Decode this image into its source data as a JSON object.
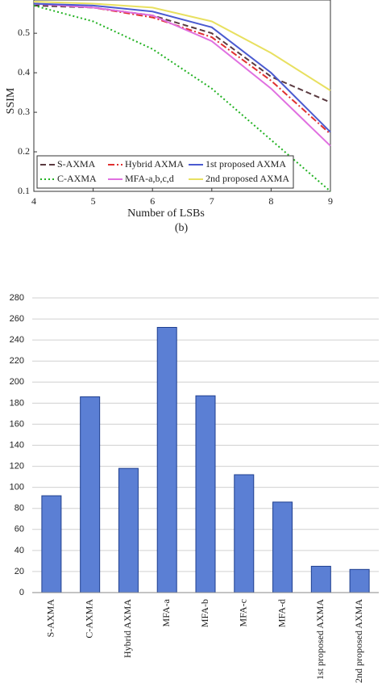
{
  "chart_data": [
    {
      "type": "line",
      "x_label": "Number of LSBs",
      "y_label": "SSIM",
      "caption": "(b)",
      "x": [
        4,
        5,
        6,
        7,
        8,
        9
      ],
      "xlim": [
        4,
        9
      ],
      "xticks": [
        4,
        5,
        6,
        7,
        8,
        9
      ],
      "ylim": [
        0.1,
        0.58
      ],
      "yticks": [
        0.1,
        0.2,
        0.3,
        0.4,
        0.5
      ],
      "legend": "lower left",
      "series": [
        {
          "name": "S-AXMA",
          "color": "#5a3a40",
          "dash": "dashed",
          "values": [
            0.57,
            0.565,
            0.545,
            0.5,
            0.39,
            0.325
          ]
        },
        {
          "name": "C-AXMA",
          "color": "#22b222",
          "dash": "dotted",
          "values": [
            0.57,
            0.53,
            0.46,
            0.36,
            0.23,
            0.1
          ]
        },
        {
          "name": "Hybrid AXMA",
          "color": "#e03030",
          "dash": "dash-dot",
          "values": [
            0.575,
            0.565,
            0.54,
            0.49,
            0.38,
            0.245
          ]
        },
        {
          "name": "MFA-a,b,c,d",
          "color": "#e070e0",
          "dash": "solid",
          "values": [
            0.575,
            0.565,
            0.545,
            0.48,
            0.36,
            0.215
          ]
        },
        {
          "name": "1st proposed AXMA",
          "color": "#4a5ad0",
          "dash": "solid",
          "values": [
            0.575,
            0.57,
            0.555,
            0.515,
            0.4,
            0.25
          ]
        },
        {
          "name": "2nd proposed AXMA",
          "color": "#e8e060",
          "dash": "solid",
          "values": [
            0.58,
            0.575,
            0.565,
            0.53,
            0.45,
            0.355
          ]
        }
      ]
    },
    {
      "type": "bar",
      "categories": [
        "S-AXMA",
        "C-AXMA",
        "Hybrid AXMA",
        "MFA-a",
        "MFA-b",
        "MFA-c",
        "MFA-d",
        "1st proposed AXMA",
        "2nd proposed AXMA"
      ],
      "values": [
        92,
        186,
        118,
        252,
        187,
        112,
        86,
        25,
        22
      ],
      "color": "#5b7fd4",
      "ylim": [
        0,
        280
      ],
      "yticks": [
        0,
        20,
        40,
        60,
        80,
        100,
        120,
        140,
        160,
        180,
        200,
        220,
        240,
        260,
        280
      ],
      "grid": true
    }
  ]
}
